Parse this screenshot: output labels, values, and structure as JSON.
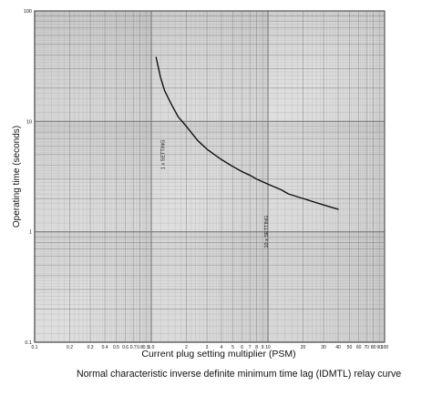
{
  "caption": "Normal characteristic inverse definite minimum time lag (IDMTL) relay curve",
  "chart_data": {
    "type": "line",
    "title": "",
    "xlabel": "Current plug setting multiplier (PSM)",
    "ylabel": "Operating time (seconds)",
    "xscale": "log",
    "yscale": "log",
    "xlim": [
      0.1,
      100
    ],
    "ylim": [
      0.1,
      100
    ],
    "grid": true,
    "legend": "none",
    "x_tick_labels": [
      "0.1",
      "0.2",
      "0.3",
      "0.4",
      "0.5",
      "0.6",
      "0.7",
      "0.8",
      "0.9",
      "1.0",
      "2",
      "3",
      "4",
      "5",
      "6",
      "7",
      "8",
      "9",
      "10",
      "20",
      "30",
      "40",
      "50",
      "60",
      "70",
      "80",
      "90",
      "100"
    ],
    "x_tick_values": [
      0.1,
      0.2,
      0.3,
      0.4,
      0.5,
      0.6,
      0.7,
      0.8,
      0.9,
      1,
      2,
      3,
      4,
      5,
      6,
      7,
      8,
      9,
      10,
      20,
      30,
      40,
      50,
      60,
      70,
      80,
      90,
      100
    ],
    "y_tick_labels": [
      "0.1",
      "1",
      "10",
      "100"
    ],
    "y_tick_values": [
      0.1,
      1,
      10,
      100
    ],
    "annotations": [
      {
        "text": "1 x SETTING",
        "x": 1.3,
        "y": 5.0
      },
      {
        "text": "10 x SETTING",
        "x": 10,
        "y": 1.0
      }
    ],
    "series": [
      {
        "x": [
          1.1,
          1.2,
          1.3,
          1.5,
          1.7,
          2,
          2.5,
          3,
          4,
          5,
          6,
          7,
          8,
          10,
          13,
          15,
          20,
          30,
          40
        ],
        "y": [
          38,
          25,
          19,
          14,
          11,
          9.0,
          6.7,
          5.6,
          4.5,
          3.9,
          3.5,
          3.25,
          3.0,
          2.7,
          2.4,
          2.2,
          2.0,
          1.75,
          1.6
        ]
      }
    ],
    "colors": {
      "line": "#111111",
      "grid": "#7a7a7a",
      "background": "#d7d7d7"
    }
  }
}
